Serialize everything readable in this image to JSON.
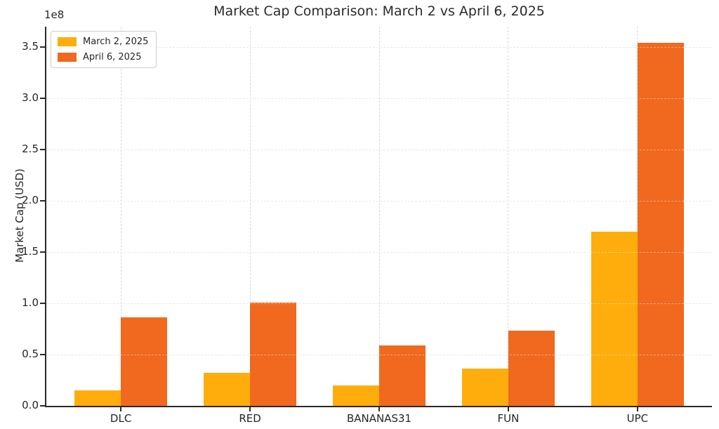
{
  "chart_data": {
    "type": "bar",
    "title": "Market Cap Comparison: March 2 vs April 6, 2025",
    "xlabel": "",
    "ylabel": "Market Cap (USD)",
    "axis_offset_label": "1e8",
    "categories": [
      "DLC",
      "RED",
      "BANANAS31",
      "FUN",
      "UPC"
    ],
    "series": [
      {
        "key": "march",
        "name": "March 2, 2025",
        "color": "#ffad0d",
        "values": [
          15000000,
          32000000,
          20000000,
          36000000,
          170000000
        ]
      },
      {
        "key": "april",
        "name": "April 6, 2025",
        "color": "#f0691f",
        "values": [
          86000000,
          101000000,
          59000000,
          73000000,
          354000000
        ]
      }
    ],
    "y_tick_labels": [
      "0.0",
      "0.5",
      "1.0",
      "1.5",
      "2.0",
      "2.5",
      "3.0",
      "3.5"
    ],
    "y_tick_values": [
      0,
      50000000,
      100000000,
      150000000,
      200000000,
      250000000,
      300000000,
      350000000
    ],
    "ylim": [
      0,
      370000000
    ],
    "grid": "dashed-both-axes",
    "legend_position": "upper-left"
  }
}
